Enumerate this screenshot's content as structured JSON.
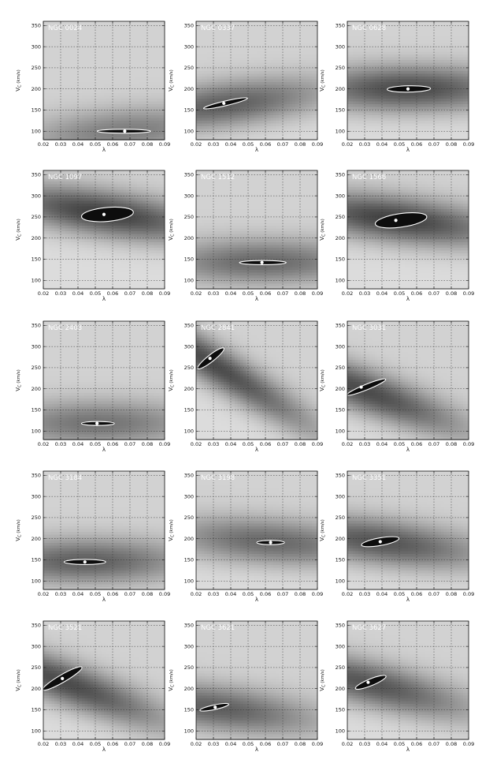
{
  "chart_data": {
    "type": "heatmap",
    "layout": {
      "columns": 3,
      "rows": 5
    },
    "xlabel": "λ",
    "ylabel_main": "V",
    "ylabel_sub": "C",
    "ylabel_unit": "(km/s)",
    "xlim": [
      0.02,
      0.09
    ],
    "ylim": [
      80,
      360
    ],
    "xticks": [
      0.02,
      0.03,
      0.04,
      0.05,
      0.06,
      0.07,
      0.08,
      0.09
    ],
    "xtick_labels": [
      "0.02",
      "0.03",
      "0.04",
      "0.05",
      "0.06",
      "0.07",
      "0.08",
      "0.09"
    ],
    "yticks": [
      100,
      150,
      200,
      250,
      300,
      350
    ],
    "ytick_labels": [
      "100",
      "150",
      "200",
      "250",
      "300",
      "350"
    ],
    "grid": true,
    "colors": {
      "map_dark": "#0d0d0d",
      "map_light": "#e8e8e8",
      "contour": "#ffffff",
      "marker": "#ffffff"
    },
    "panels": [
      {
        "name": "NGC 0024",
        "best": [
          0.067,
          100
        ],
        "contour": {
          "x0": 0.051,
          "x1": 0.082,
          "w": 4,
          "ylo": 4,
          "ang": 0
        },
        "valley": [
          100,
          0.3
        ],
        "depth": 0.5
      },
      {
        "name": "NGC 0337",
        "best": [
          0.036,
          166
        ],
        "contour": {
          "x0": 0.024,
          "x1": 0.05,
          "w": 6,
          "ylo": 5,
          "ang": -13
        },
        "valley": [
          162,
          0.5
        ],
        "depth": 0.65
      },
      {
        "name": "NGC 0628",
        "best": [
          0.055,
          200
        ],
        "contour": {
          "x0": 0.043,
          "x1": 0.068,
          "w": 8,
          "ylo": 7,
          "ang": -1
        },
        "valley": [
          200,
          0.0
        ],
        "depth": 0.75
      },
      {
        "name": "NGC 1097",
        "best": [
          0.055,
          256
        ],
        "contour": {
          "x0": 0.042,
          "x1": 0.072,
          "w": 18,
          "ylo": 15,
          "ang": -5
        },
        "valley": [
          258,
          -0.6
        ],
        "depth": 0.8
      },
      {
        "name": "NGC 1512",
        "best": [
          0.058,
          142
        ],
        "contour": {
          "x0": 0.045,
          "x1": 0.072,
          "w": 5,
          "ylo": 5,
          "ang": 0
        },
        "valley": [
          143,
          0.0
        ],
        "depth": 0.6
      },
      {
        "name": "NGC 1566",
        "best": [
          0.048,
          242
        ],
        "contour": {
          "x0": 0.036,
          "x1": 0.066,
          "w": 18,
          "ylo": 14,
          "ang": -8
        },
        "valley": [
          244,
          -0.5
        ],
        "depth": 0.8
      },
      {
        "name": "NGC 2403",
        "best": [
          0.051,
          118
        ],
        "contour": {
          "x0": 0.042,
          "x1": 0.061,
          "w": 4,
          "ylo": 4,
          "ang": 0
        },
        "valley": [
          118,
          0.0
        ],
        "depth": 0.55
      },
      {
        "name": "NGC 2841",
        "best": [
          0.028,
          272
        ],
        "contour": {
          "x0": 0.019,
          "x1": 0.038,
          "w": 9,
          "ylo": 7,
          "ang": -38
        },
        "valley": [
          262,
          -2.5
        ],
        "depth": 0.75
      },
      {
        "name": "NGC 3031",
        "best": [
          0.028,
          204
        ],
        "contour": {
          "x0": 0.019,
          "x1": 0.043,
          "w": 7,
          "ylo": 6,
          "ang": -22
        },
        "valley": [
          198,
          -1.5
        ],
        "depth": 0.75
      },
      {
        "name": "NGC 3184",
        "best": [
          0.044,
          145
        ],
        "contour": {
          "x0": 0.032,
          "x1": 0.056,
          "w": 6,
          "ylo": 6,
          "ang": 0
        },
        "valley": [
          146,
          0.0
        ],
        "depth": 0.65
      },
      {
        "name": "NGC 3198",
        "best": [
          0.063,
          191
        ],
        "contour": {
          "x0": 0.055,
          "x1": 0.071,
          "w": 5,
          "ylo": 5,
          "ang": 0
        },
        "valley": [
          192,
          -0.3
        ],
        "depth": 0.6
      },
      {
        "name": "NGC 3351",
        "best": [
          0.039,
          193
        ],
        "contour": {
          "x0": 0.028,
          "x1": 0.05,
          "w": 10,
          "ylo": 8,
          "ang": -10
        },
        "valley": [
          192,
          -0.5
        ],
        "depth": 0.7
      },
      {
        "name": "NGC 3521",
        "best": [
          0.031,
          224
        ],
        "contour": {
          "x0": 0.018,
          "x1": 0.044,
          "w": 10,
          "ylo": 8,
          "ang": -30
        },
        "valley": [
          216,
          -1.5
        ],
        "depth": 0.75
      },
      {
        "name": "NGC 3621",
        "best": [
          0.031,
          156
        ],
        "contour": {
          "x0": 0.022,
          "x1": 0.039,
          "w": 6,
          "ylo": 5,
          "ang": -12
        },
        "valley": [
          154,
          -0.5
        ],
        "depth": 0.65
      },
      {
        "name": "NGC 3627",
        "best": [
          0.032,
          215
        ],
        "contour": {
          "x0": 0.024,
          "x1": 0.043,
          "w": 9,
          "ylo": 7,
          "ang": -22
        },
        "valley": [
          212,
          -1.0
        ],
        "depth": 0.7
      }
    ]
  }
}
